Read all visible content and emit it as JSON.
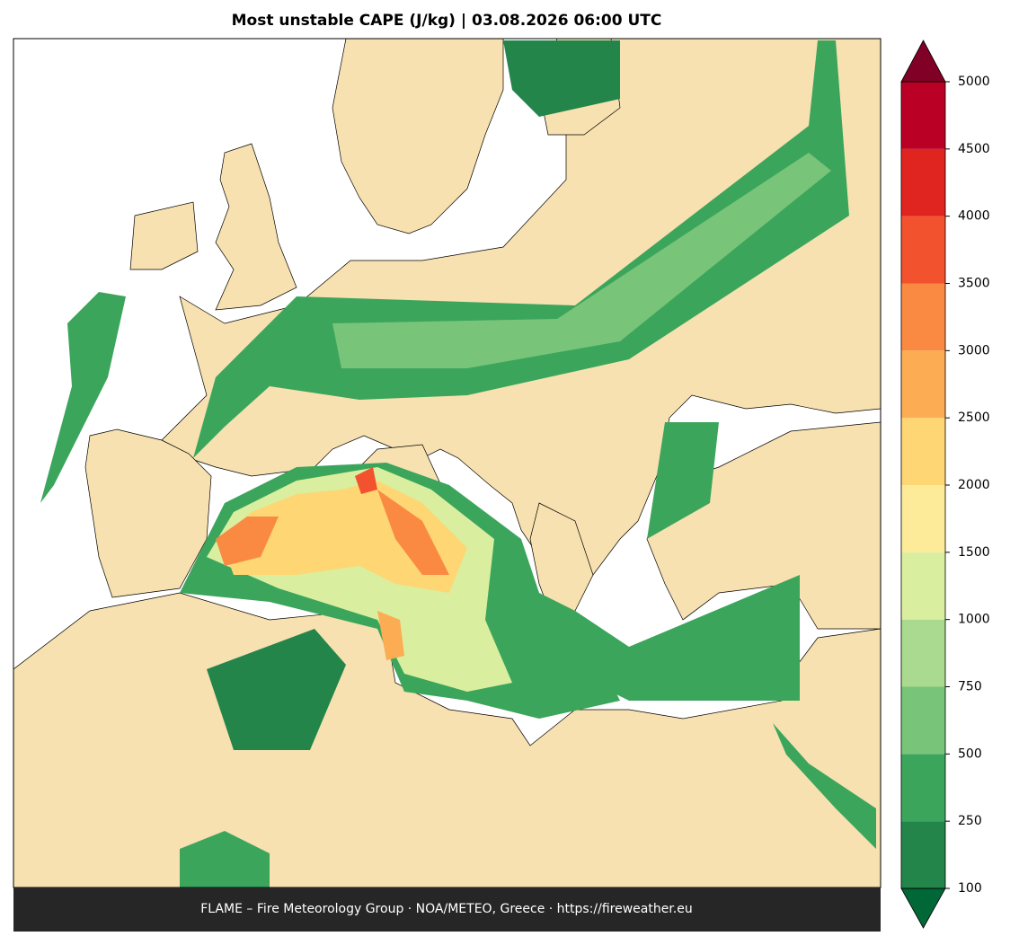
{
  "title": "Most unstable CAPE (J/kg)  |  03.08.2026 06:00 UTC",
  "footer": "FLAME – Fire Meteorology Group · NOA/METEO, Greece · https://fireweather.eu",
  "colorbar": {
    "ticks": [
      100,
      250,
      500,
      750,
      1000,
      1500,
      2000,
      2500,
      3000,
      3500,
      4000,
      4500,
      5000
    ],
    "colors": [
      "#23854a",
      "#3ca55c",
      "#78c479",
      "#a9da8f",
      "#d9ef9f",
      "#feeb9a",
      "#fed674",
      "#fcac52",
      "#fa8a42",
      "#f3522e",
      "#e0241f",
      "#bb0026"
    ],
    "under_color": "#006837",
    "over_color": "#800026"
  }
}
